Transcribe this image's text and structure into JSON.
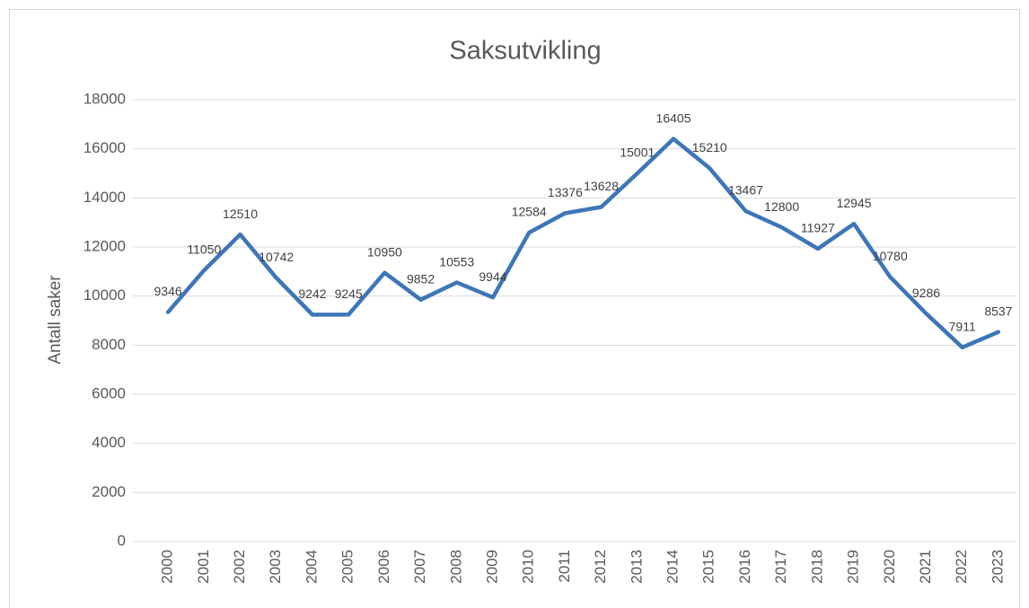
{
  "chart_data": {
    "type": "line",
    "title": "Saksutvikling",
    "y_label": "Antall saker",
    "categories": [
      "2000",
      "2001",
      "2002",
      "2003",
      "2004",
      "2005",
      "2006",
      "2007",
      "2008",
      "2009",
      "2010",
      "2011",
      "2012",
      "2013",
      "2014",
      "2015",
      "2016",
      "2017",
      "2018",
      "2019",
      "2020",
      "2021",
      "2022",
      "2023"
    ],
    "values": [
      9346,
      11050,
      12510,
      10742,
      9242,
      9245,
      10950,
      9852,
      10553,
      9944,
      12584,
      13376,
      13628,
      15001,
      16405,
      15210,
      13467,
      12800,
      11927,
      12945,
      10780,
      9286,
      7911,
      8537
    ],
    "color": "#3d76b8",
    "ylim": [
      0,
      18000
    ],
    "yticks": [
      0,
      2000,
      4000,
      6000,
      8000,
      10000,
      12000,
      14000,
      16000,
      18000
    ],
    "grid": true
  }
}
